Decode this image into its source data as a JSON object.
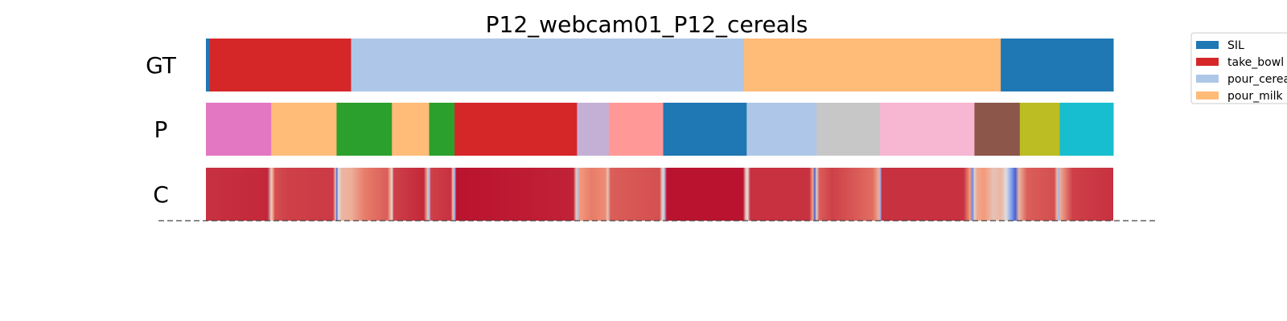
{
  "chart_data": {
    "type": "heatmap",
    "title": "P12_webcam01_P12_cereals",
    "timeline_length": 1000,
    "rows": [
      {
        "label": "GT",
        "segments": [
          {
            "start": 0,
            "end": 4,
            "color": "#1f77b4"
          },
          {
            "start": 4,
            "end": 160,
            "color": "#d62728"
          },
          {
            "start": 160,
            "end": 593,
            "color": "#aec7e8"
          },
          {
            "start": 593,
            "end": 876,
            "color": "#ffbb78"
          },
          {
            "start": 876,
            "end": 1000,
            "color": "#1f77b4"
          }
        ]
      },
      {
        "label": "P",
        "segments": [
          {
            "start": 0,
            "end": 72,
            "color": "#e377c2"
          },
          {
            "start": 72,
            "end": 144,
            "color": "#ffbb78"
          },
          {
            "start": 144,
            "end": 205,
            "color": "#2ca02c"
          },
          {
            "start": 205,
            "end": 246,
            "color": "#ffbb78"
          },
          {
            "start": 246,
            "end": 274,
            "color": "#2ca02c"
          },
          {
            "start": 274,
            "end": 409,
            "color": "#d62728"
          },
          {
            "start": 409,
            "end": 444,
            "color": "#c5b0d5"
          },
          {
            "start": 444,
            "end": 504,
            "color": "#ff9896"
          },
          {
            "start": 504,
            "end": 596,
            "color": "#1f77b4"
          },
          {
            "start": 596,
            "end": 673,
            "color": "#aec7e8"
          },
          {
            "start": 673,
            "end": 743,
            "color": "#c7c7c7"
          },
          {
            "start": 743,
            "end": 847,
            "color": "#f7b6d2"
          },
          {
            "start": 847,
            "end": 897,
            "color": "#8c564b"
          },
          {
            "start": 897,
            "end": 941,
            "color": "#bcbd22"
          },
          {
            "start": 941,
            "end": 1000,
            "color": "#17becf"
          }
        ]
      },
      {
        "label": "C",
        "confidence": [
          {
            "pos": 0,
            "value": 0.85
          },
          {
            "pos": 68,
            "value": 0.88
          },
          {
            "pos": 72,
            "value": 0.1
          },
          {
            "pos": 74,
            "value": 0.5
          },
          {
            "pos": 76,
            "value": 0.75
          },
          {
            "pos": 90,
            "value": 0.8
          },
          {
            "pos": 140,
            "value": 0.82
          },
          {
            "pos": 143,
            "value": 0.2
          },
          {
            "pos": 144,
            "value": -0.9
          },
          {
            "pos": 146,
            "value": 0.0
          },
          {
            "pos": 150,
            "value": 0.3
          },
          {
            "pos": 160,
            "value": 0.35
          },
          {
            "pos": 175,
            "value": 0.6
          },
          {
            "pos": 200,
            "value": 0.7
          },
          {
            "pos": 203,
            "value": 0.4
          },
          {
            "pos": 205,
            "value": 0.0
          },
          {
            "pos": 207,
            "value": 0.8
          },
          {
            "pos": 240,
            "value": 0.88
          },
          {
            "pos": 244,
            "value": 0.3
          },
          {
            "pos": 246,
            "value": -0.3
          },
          {
            "pos": 248,
            "value": 0.8
          },
          {
            "pos": 270,
            "value": 0.85
          },
          {
            "pos": 272,
            "value": 0.3
          },
          {
            "pos": 274,
            "value": -0.4
          },
          {
            "pos": 276,
            "value": 0.95
          },
          {
            "pos": 405,
            "value": 0.9
          },
          {
            "pos": 408,
            "value": 0.2
          },
          {
            "pos": 410,
            "value": -0.3
          },
          {
            "pos": 412,
            "value": 0.5
          },
          {
            "pos": 425,
            "value": 0.6
          },
          {
            "pos": 440,
            "value": 0.55
          },
          {
            "pos": 443,
            "value": 0.2
          },
          {
            "pos": 446,
            "value": 0.7
          },
          {
            "pos": 500,
            "value": 0.75
          },
          {
            "pos": 503,
            "value": 0.1
          },
          {
            "pos": 505,
            "value": -0.2
          },
          {
            "pos": 508,
            "value": 0.95
          },
          {
            "pos": 592,
            "value": 0.95
          },
          {
            "pos": 595,
            "value": 0.2
          },
          {
            "pos": 597,
            "value": 0.0
          },
          {
            "pos": 600,
            "value": 0.85
          },
          {
            "pos": 665,
            "value": 0.85
          },
          {
            "pos": 669,
            "value": 0.4
          },
          {
            "pos": 671,
            "value": -0.9
          },
          {
            "pos": 673,
            "value": 0.1
          },
          {
            "pos": 676,
            "value": 0.7
          },
          {
            "pos": 690,
            "value": 0.8
          },
          {
            "pos": 735,
            "value": 0.65
          },
          {
            "pos": 741,
            "value": 0.4
          },
          {
            "pos": 743,
            "value": -0.4
          },
          {
            "pos": 745,
            "value": 0.85
          },
          {
            "pos": 835,
            "value": 0.85
          },
          {
            "pos": 842,
            "value": 0.5
          },
          {
            "pos": 845,
            "value": -0.7
          },
          {
            "pos": 847,
            "value": 0.1
          },
          {
            "pos": 850,
            "value": 0.4
          },
          {
            "pos": 858,
            "value": 0.5
          },
          {
            "pos": 868,
            "value": 0.2
          },
          {
            "pos": 876,
            "value": 0.3
          },
          {
            "pos": 882,
            "value": 0.0
          },
          {
            "pos": 888,
            "value": -0.6
          },
          {
            "pos": 892,
            "value": -0.9
          },
          {
            "pos": 896,
            "value": 0.3
          },
          {
            "pos": 905,
            "value": 0.7
          },
          {
            "pos": 935,
            "value": 0.75
          },
          {
            "pos": 938,
            "value": 0.3
          },
          {
            "pos": 940,
            "value": -0.4
          },
          {
            "pos": 942,
            "value": 0.4
          },
          {
            "pos": 955,
            "value": 0.8
          },
          {
            "pos": 1000,
            "value": 0.85
          }
        ]
      }
    ],
    "legend": {
      "placement": "upper-right",
      "entries": [
        {
          "label": "SIL",
          "color": "#1f77b4"
        },
        {
          "label": "take_bowl",
          "color": "#d62728"
        },
        {
          "label": "pour_cerea",
          "color": "#aec7e8"
        },
        {
          "label": "pour_milk",
          "color": "#ffbb78"
        }
      ]
    },
    "grid": false
  }
}
